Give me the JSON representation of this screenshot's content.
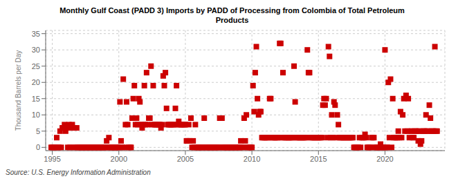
{
  "chart_data": {
    "type": "scatter",
    "title": "Monthly Gulf Coast (PADD 3) Imports by PADD of Processing from Colombia of Total Petroleum\nProducts",
    "ylabel": "Thousand Barrels per Day",
    "annotations": [
      "Source: U.S. Energy Information Administration"
    ],
    "color": "#CC0000",
    "marker": "square",
    "grid": true,
    "xlim": [
      1994.5,
      2024.5
    ],
    "ylim": [
      -1,
      36
    ],
    "xticks": [
      1995,
      2000,
      2005,
      2010,
      2015,
      2020
    ],
    "yticks": [
      0,
      5,
      10,
      15,
      20,
      25,
      30,
      35
    ],
    "x": [
      1994.917,
      1995.0,
      1995.083,
      1995.167,
      1995.25,
      1995.333,
      1995.417,
      1995.5,
      1995.583,
      1995.667,
      1995.75,
      1995.833,
      1995.917,
      1996.0,
      1996.083,
      1996.167,
      1996.25,
      1996.333,
      1996.417,
      1996.5,
      1996.583,
      1996.667,
      1996.75,
      1996.833,
      1996.917,
      1997.0,
      1997.083,
      1997.167,
      1997.25,
      1997.333,
      1997.417,
      1997.5,
      1997.583,
      1997.667,
      1997.75,
      1997.833,
      1997.917,
      1998.0,
      1998.083,
      1998.167,
      1998.25,
      1998.333,
      1998.417,
      1998.5,
      1998.583,
      1998.667,
      1998.75,
      1998.833,
      1998.917,
      1999.0,
      1999.083,
      1999.167,
      1999.25,
      1999.333,
      1999.417,
      1999.5,
      1999.583,
      1999.667,
      1999.75,
      1999.833,
      1999.917,
      2000.0,
      2000.083,
      2000.167,
      2000.25,
      2000.333,
      2000.417,
      2000.5,
      2000.583,
      2000.667,
      2000.75,
      2000.833,
      2000.917,
      2001.0,
      2001.083,
      2001.167,
      2001.25,
      2001.333,
      2001.417,
      2001.5,
      2001.583,
      2001.667,
      2001.75,
      2001.833,
      2001.917,
      2002.0,
      2002.083,
      2002.167,
      2002.25,
      2002.333,
      2002.417,
      2002.5,
      2002.583,
      2002.667,
      2002.75,
      2002.833,
      2002.917,
      2003.0,
      2003.083,
      2003.167,
      2003.25,
      2003.333,
      2003.417,
      2003.5,
      2003.583,
      2003.667,
      2003.75,
      2003.833,
      2003.917,
      2004.0,
      2004.083,
      2004.167,
      2004.25,
      2004.333,
      2004.417,
      2004.5,
      2004.583,
      2004.667,
      2004.75,
      2004.833,
      2004.917,
      2005.0,
      2005.083,
      2005.167,
      2005.25,
      2005.333,
      2005.417,
      2005.5,
      2005.583,
      2005.667,
      2005.75,
      2005.833,
      2005.917,
      2006.0,
      2006.083,
      2006.167,
      2006.25,
      2006.333,
      2006.417,
      2006.5,
      2006.583,
      2006.667,
      2006.75,
      2006.833,
      2006.917,
      2007.0,
      2007.083,
      2007.167,
      2007.25,
      2007.333,
      2007.417,
      2007.5,
      2007.583,
      2007.667,
      2007.75,
      2007.833,
      2007.917,
      2008.0,
      2008.083,
      2008.167,
      2008.25,
      2008.333,
      2008.417,
      2008.5,
      2008.583,
      2008.667,
      2008.75,
      2008.833,
      2008.917,
      2009.0,
      2009.083,
      2009.167,
      2009.25,
      2009.333,
      2009.417,
      2009.5,
      2009.583,
      2009.667,
      2009.75,
      2009.833,
      2009.917,
      2010.0,
      2010.083,
      2010.167,
      2010.25,
      2010.333,
      2010.417,
      2010.5,
      2010.583,
      2010.667,
      2010.75,
      2010.833,
      2010.917,
      2011.0,
      2011.083,
      2011.167,
      2011.25,
      2011.333,
      2011.417,
      2011.5,
      2011.583,
      2011.667,
      2011.75,
      2011.833,
      2011.917,
      2012.0,
      2012.083,
      2012.167,
      2012.25,
      2012.333,
      2012.417,
      2012.5,
      2012.583,
      2012.667,
      2012.75,
      2012.833,
      2012.917,
      2013.0,
      2013.083,
      2013.167,
      2013.25,
      2013.333,
      2013.417,
      2013.5,
      2013.583,
      2013.667,
      2013.75,
      2013.833,
      2013.917,
      2014.0,
      2014.083,
      2014.167,
      2014.25,
      2014.333,
      2014.417,
      2014.5,
      2014.583,
      2014.667,
      2014.75,
      2014.833,
      2014.917,
      2015.0,
      2015.083,
      2015.167,
      2015.25,
      2015.333,
      2015.417,
      2015.5,
      2015.583,
      2015.667,
      2015.75,
      2015.833,
      2015.917,
      2016.0,
      2016.083,
      2016.167,
      2016.25,
      2016.333,
      2016.417,
      2016.5,
      2016.583,
      2016.667,
      2016.75,
      2016.833,
      2016.917,
      2017.0,
      2017.083,
      2017.167,
      2017.25,
      2017.333,
      2017.417,
      2017.5,
      2017.583,
      2017.667,
      2017.75,
      2017.833,
      2017.917,
      2018.0,
      2018.083,
      2018.167,
      2018.25,
      2018.333,
      2018.417,
      2018.5,
      2018.583,
      2018.667,
      2018.75,
      2018.833,
      2018.917,
      2019.0,
      2019.083,
      2019.167,
      2019.25,
      2019.333,
      2019.417,
      2019.5,
      2019.583,
      2019.667,
      2019.75,
      2019.833,
      2019.917,
      2020.0,
      2020.083,
      2020.167,
      2020.25,
      2020.333,
      2020.417,
      2020.5,
      2020.583,
      2020.667,
      2020.75,
      2020.833,
      2020.917,
      2021.0,
      2021.083,
      2021.167,
      2021.25,
      2021.333,
      2021.417,
      2021.5,
      2021.583,
      2021.667,
      2021.75,
      2021.833,
      2021.917,
      2022.0,
      2022.083,
      2022.167,
      2022.25,
      2022.333,
      2022.417,
      2022.5,
      2022.583,
      2022.667,
      2022.75,
      2022.833,
      2022.917,
      2023.0,
      2023.083,
      2023.167,
      2023.25,
      2023.333,
      2023.417,
      2023.5,
      2023.583,
      2023.667,
      2023.75,
      2023.833,
      2023.917
    ],
    "values": [
      0,
      0,
      0,
      0,
      0,
      3,
      0,
      0,
      5,
      0,
      6,
      6,
      7,
      5,
      6,
      0,
      7,
      0,
      6,
      7,
      0,
      6,
      0,
      6,
      0,
      0,
      0,
      0,
      0,
      0,
      0,
      0,
      0,
      0,
      0,
      0,
      0,
      0,
      0,
      0,
      0,
      0,
      0,
      0,
      0,
      0,
      0,
      0,
      0,
      0,
      2,
      0,
      3,
      0,
      0,
      0,
      0,
      0,
      0,
      0,
      0,
      0,
      14,
      2,
      0,
      21,
      0,
      7,
      14,
      7,
      0,
      0,
      0,
      9,
      15,
      19,
      7,
      9,
      7,
      15,
      14,
      7,
      6,
      7,
      19,
      7,
      23,
      7,
      9,
      9,
      25,
      7,
      19,
      7,
      7,
      7,
      7,
      7,
      7,
      6,
      7,
      22,
      19,
      23,
      12,
      7,
      7,
      7,
      7,
      7,
      7,
      7,
      12,
      19,
      7,
      8,
      7,
      7,
      7,
      7,
      7,
      7,
      2,
      2,
      7,
      2,
      9,
      0,
      2,
      0,
      7,
      0,
      0,
      0,
      0,
      0,
      0,
      0,
      9,
      0,
      0,
      0,
      0,
      0,
      0,
      0,
      0,
      0,
      0,
      0,
      0,
      0,
      9,
      0,
      9,
      0,
      0,
      0,
      0,
      0,
      0,
      0,
      0,
      0,
      0,
      0,
      0,
      0,
      0,
      0,
      0,
      2,
      0,
      0,
      9,
      2,
      10,
      0,
      0,
      0,
      0,
      0,
      19,
      11,
      23,
      31,
      15,
      10,
      11,
      11,
      3,
      3,
      3,
      3,
      3,
      3,
      3,
      15,
      15,
      3,
      3,
      3,
      3,
      3,
      3,
      3,
      32,
      32,
      3,
      23,
      3,
      3,
      3,
      3,
      3,
      3,
      3,
      3,
      3,
      25,
      14,
      3,
      3,
      3,
      3,
      3,
      3,
      3,
      3,
      3,
      3,
      30,
      23,
      23,
      3,
      3,
      3,
      3,
      3,
      3,
      3,
      3,
      3,
      3,
      3,
      13,
      15,
      13,
      15,
      3,
      31,
      28,
      3,
      10,
      3,
      14,
      13,
      3,
      10,
      7,
      3,
      3,
      3,
      3,
      3,
      3,
      3,
      3,
      3,
      3,
      3,
      3,
      3,
      0,
      0,
      0,
      0,
      0,
      3,
      0,
      3,
      3,
      3,
      4,
      3,
      0,
      0,
      0,
      0,
      3,
      3,
      3,
      0,
      0,
      0,
      0,
      0,
      1,
      0,
      0,
      0,
      30,
      0,
      0,
      20,
      3,
      21,
      0,
      15,
      3,
      3,
      3,
      3,
      5,
      3,
      11,
      3,
      10,
      15,
      5,
      16,
      5,
      15,
      3,
      5,
      5,
      3,
      3,
      5,
      5,
      5,
      2,
      5,
      1,
      2,
      5,
      5,
      5,
      10,
      5,
      5,
      13,
      9,
      5,
      5,
      5,
      31,
      5,
      5
    ]
  }
}
